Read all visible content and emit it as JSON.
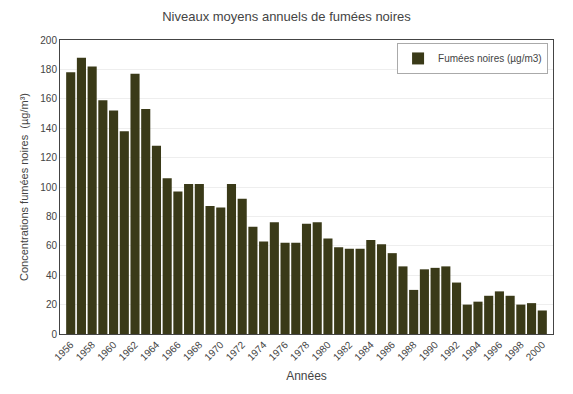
{
  "chart_data": {
    "type": "bar",
    "title": "Niveaux moyens annuels de fumées noires",
    "xlabel": "Années",
    "ylabel": "Concentrations fumées noires  (µg/m³)",
    "x": [
      1956,
      1957,
      1958,
      1959,
      1960,
      1961,
      1962,
      1963,
      1964,
      1965,
      1966,
      1967,
      1968,
      1969,
      1970,
      1971,
      1972,
      1973,
      1974,
      1975,
      1976,
      1977,
      1978,
      1979,
      1980,
      1981,
      1982,
      1983,
      1984,
      1985,
      1986,
      1987,
      1988,
      1989,
      1990,
      1991,
      1992,
      1993,
      1994,
      1995,
      1996,
      1997,
      1998,
      1999,
      2000
    ],
    "series": [
      {
        "name": "Fumées noires (µg/m3)",
        "color": "#3a3a18",
        "values": [
          178,
          188,
          182,
          159,
          152,
          138,
          177,
          153,
          128,
          106,
          97,
          102,
          102,
          87,
          86,
          102,
          92,
          73,
          63,
          76,
          62,
          62,
          75,
          76,
          65,
          59,
          58,
          58,
          64,
          61,
          55,
          46,
          30,
          44,
          45,
          46,
          35,
          20,
          22,
          26,
          29,
          26,
          20,
          21,
          16
        ]
      }
    ],
    "xlim": [
      1955.0,
      2001.0
    ],
    "xticks": [
      1956,
      1958,
      1960,
      1962,
      1964,
      1966,
      1968,
      1970,
      1972,
      1974,
      1976,
      1978,
      1980,
      1982,
      1984,
      1986,
      1988,
      1990,
      1992,
      1994,
      1996,
      1998,
      2000
    ],
    "ylim": [
      0,
      200
    ],
    "yticks": [
      0,
      20,
      40,
      60,
      80,
      100,
      120,
      140,
      160,
      180,
      200
    ],
    "grid": true,
    "legend": "upper right"
  }
}
